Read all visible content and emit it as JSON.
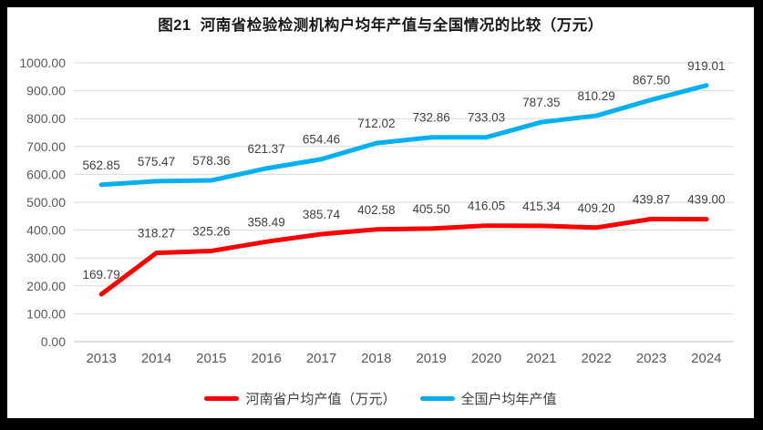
{
  "title": "图21  河南省检验检测机构户均年产值与全国情况的比较（万元）",
  "chart_data": {
    "type": "line",
    "title": "图21  河南省检验检测机构户均年产值与全国情况的比较（万元）",
    "categories": [
      "2013",
      "2014",
      "2015",
      "2016",
      "2017",
      "2018",
      "2019",
      "2020",
      "2021",
      "2022",
      "2023",
      "2024"
    ],
    "series": [
      {
        "name": "河南省户均产值（万元）",
        "color": "#FF0000",
        "values": [
          169.79,
          318.27,
          325.26,
          358.49,
          385.74,
          402.58,
          405.5,
          416.05,
          415.34,
          409.2,
          439.87,
          439.0
        ]
      },
      {
        "name": "全国户均年产值",
        "color": "#00B0F0",
        "values": [
          562.85,
          575.47,
          578.36,
          621.37,
          654.46,
          712.02,
          732.86,
          733.03,
          787.35,
          810.29,
          867.5,
          919.01
        ]
      }
    ],
    "xlabel": "",
    "ylabel": "",
    "ylim": [
      0,
      1000
    ],
    "ytick_step": 100,
    "ytick_decimals": 2,
    "data_label_decimals": 2,
    "grid": "horizontal",
    "legend_position": "bottom",
    "data_labels": true,
    "colors": {
      "gridline": "#D9D9D9",
      "axis_line": "#BFBFBF",
      "axis_label": "#595959",
      "data_label": "#404040",
      "title": "#1A1A1A",
      "frame_border": "#000000",
      "background": "#FFFFFF"
    }
  }
}
